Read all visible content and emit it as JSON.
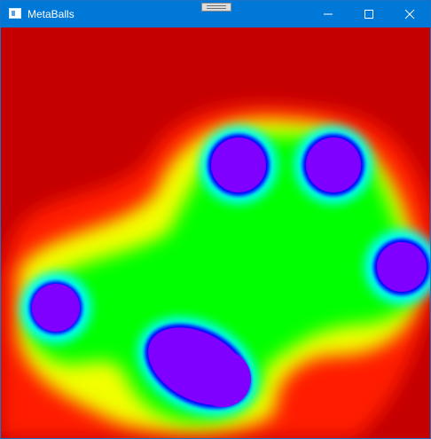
{
  "window": {
    "title": "MetaBalls"
  },
  "icons": {
    "app": "app-window-icon",
    "grip": "drag-grip-icon",
    "minimize": "minimize-icon",
    "maximize": "maximize-icon",
    "close": "close-icon"
  },
  "colors": {
    "titlebar": "#0078d7",
    "title_text": "#ffffff",
    "field_far": "#c40000",
    "field_mid_red": "#ff0000",
    "field_yellow": "#f0ff00",
    "field_green": "#00ff00",
    "field_cyan": "#00ffff",
    "field_blue": "#0000ff",
    "ball_core": "#7f00ff"
  },
  "balls": [
    {
      "name": "ball-top-left"
    },
    {
      "name": "ball-top-right"
    },
    {
      "name": "ball-right"
    },
    {
      "name": "ball-left"
    },
    {
      "name": "ball-bottom-a"
    },
    {
      "name": "ball-bottom-b"
    }
  ]
}
